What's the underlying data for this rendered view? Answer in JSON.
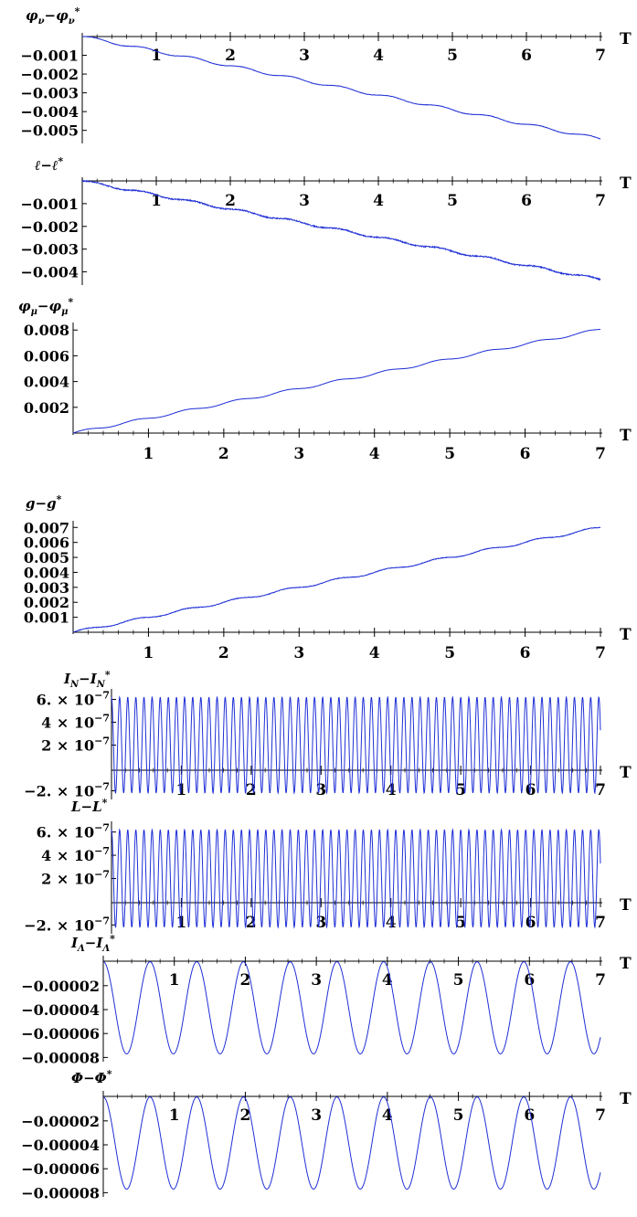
{
  "chart_data": [
    {
      "id": "phi-nu",
      "type": "line",
      "ylabel": "φ_ν−φ_ν*",
      "xlabel": "T",
      "xlim": [
        0,
        7
      ],
      "ylim": [
        -0.0056,
        0.0
      ],
      "xticks": [
        "1",
        "2",
        "3",
        "4",
        "5",
        "6",
        "7"
      ],
      "yticks": [
        {
          "v": -0.001,
          "label": "−0.001"
        },
        {
          "v": -0.002,
          "label": "−0.002"
        },
        {
          "v": -0.003,
          "label": "−0.003"
        },
        {
          "v": -0.004,
          "label": "−0.004"
        },
        {
          "v": -0.005,
          "label": "−0.005"
        }
      ],
      "series": [
        {
          "trend": -0.00078,
          "steps": 0.00014,
          "noise": 2e-05
        }
      ]
    },
    {
      "id": "ell",
      "type": "line",
      "ylabel": "ℓ−ℓ*",
      "xlabel": "T",
      "xlim": [
        0,
        7
      ],
      "ylim": [
        -0.0045,
        0.0
      ],
      "xticks": [
        "1",
        "2",
        "3",
        "4",
        "5",
        "6",
        "7"
      ],
      "yticks": [
        {
          "v": -0.001,
          "label": "−0.001"
        },
        {
          "v": -0.002,
          "label": "−0.002"
        },
        {
          "v": -0.003,
          "label": "−0.003"
        },
        {
          "v": -0.004,
          "label": "−0.004"
        }
      ],
      "series": [
        {
          "trend": -0.00062,
          "steps": 0.0001,
          "noise": 5e-05
        }
      ]
    },
    {
      "id": "phi-mu",
      "type": "line",
      "ylabel": "φ_μ−φ_μ*",
      "xlabel": "T",
      "xlim": [
        0,
        7
      ],
      "ylim": [
        0.0,
        0.0083
      ],
      "xticks": [
        "1",
        "2",
        "3",
        "4",
        "5",
        "6",
        "7"
      ],
      "yticks": [
        {
          "v": 0.002,
          "label": "0.002"
        },
        {
          "v": 0.004,
          "label": "0.004"
        },
        {
          "v": 0.006,
          "label": "0.006"
        },
        {
          "v": 0.008,
          "label": "0.008"
        }
      ],
      "series": [
        {
          "trend": 0.00115,
          "steps": 0.00018,
          "noise": 1e-05
        }
      ]
    },
    {
      "id": "g",
      "type": "line",
      "ylabel": "g−g*",
      "xlabel": "T",
      "xlim": [
        0,
        7
      ],
      "ylim": [
        0.0,
        0.0072
      ],
      "xticks": [
        "1",
        "2",
        "3",
        "4",
        "5",
        "6",
        "7"
      ],
      "yticks": [
        {
          "v": 0.001,
          "label": "0.001"
        },
        {
          "v": 0.002,
          "label": "0.002"
        },
        {
          "v": 0.003,
          "label": "0.003"
        },
        {
          "v": 0.004,
          "label": "0.004"
        },
        {
          "v": 0.005,
          "label": "0.005"
        },
        {
          "v": 0.006,
          "label": "0.006"
        },
        {
          "v": 0.007,
          "label": "0.007"
        }
      ],
      "series": [
        {
          "trend": 0.001,
          "steps": 0.00016,
          "noise": 4e-05
        }
      ]
    },
    {
      "id": "IN",
      "type": "line",
      "ylabel": "I_N−I_N*",
      "xlabel": "T",
      "xlim": [
        0,
        7
      ],
      "ylim": [
        -2.6e-07,
        6.6e-07
      ],
      "xticks": [
        "1",
        "2",
        "3",
        "4",
        "5",
        "6",
        "7"
      ],
      "yticks": [
        {
          "v": 6e-07,
          "label": "6. × 10"
        },
        {
          "v": 4e-07,
          "label": "4 × 10"
        },
        {
          "v": 2e-07,
          "label": "2 × 10"
        },
        {
          "v": -2e-07,
          "label": "−2. × 10"
        }
      ],
      "ytick_exponent": "−7",
      "series": [
        {
          "osc_amp": 4.2e-07,
          "osc_center": 2e-07,
          "freq": 8.6
        }
      ]
    },
    {
      "id": "L",
      "type": "line",
      "ylabel": "L−L*",
      "xlabel": "T",
      "xlim": [
        0,
        7
      ],
      "ylim": [
        -2.6e-07,
        6.6e-07
      ],
      "xticks": [
        "1",
        "2",
        "3",
        "4",
        "5",
        "6",
        "7"
      ],
      "yticks": [
        {
          "v": 6e-07,
          "label": "6. × 10"
        },
        {
          "v": 4e-07,
          "label": "4 × 10"
        },
        {
          "v": 2e-07,
          "label": "2 × 10"
        },
        {
          "v": -2e-07,
          "label": "−2. × 10"
        }
      ],
      "ytick_exponent": "−7",
      "series": [
        {
          "osc_amp": 4.2e-07,
          "osc_center": 2e-07,
          "freq": 8.6
        }
      ]
    },
    {
      "id": "ILambda",
      "type": "line",
      "ylabel": "I_Λ−I_Λ*",
      "xlabel": "T",
      "xlim": [
        0,
        7
      ],
      "ylim": [
        -8.2e-05,
        2e-06
      ],
      "xticks": [
        "1",
        "2",
        "3",
        "4",
        "5",
        "6",
        "7"
      ],
      "yticks": [
        {
          "v": -2e-05,
          "label": "−0.00002"
        },
        {
          "v": -4e-05,
          "label": "−0.00004"
        },
        {
          "v": -6e-05,
          "label": "−0.00006"
        },
        {
          "v": -8e-05,
          "label": "−0.00008"
        }
      ],
      "series": [
        {
          "osc_amp": 3.85e-05,
          "osc_center": -3.85e-05,
          "freq": 1.52
        }
      ]
    },
    {
      "id": "Phi",
      "type": "line",
      "ylabel": "Φ−Φ*",
      "xlabel": "T",
      "xlim": [
        0,
        7
      ],
      "ylim": [
        -8.2e-05,
        2e-06
      ],
      "xticks": [
        "1",
        "2",
        "3",
        "4",
        "5",
        "6",
        "7"
      ],
      "yticks": [
        {
          "v": -2e-05,
          "label": "−0.00002"
        },
        {
          "v": -4e-05,
          "label": "−0.00004"
        },
        {
          "v": -6e-05,
          "label": "−0.00006"
        },
        {
          "v": -8e-05,
          "label": "−0.00008"
        }
      ],
      "series": [
        {
          "osc_amp": 3.85e-05,
          "osc_center": -3.85e-05,
          "freq": 1.52
        }
      ]
    }
  ],
  "style": {
    "line_color": "#1f2fd6",
    "axis_color": "#000000"
  }
}
